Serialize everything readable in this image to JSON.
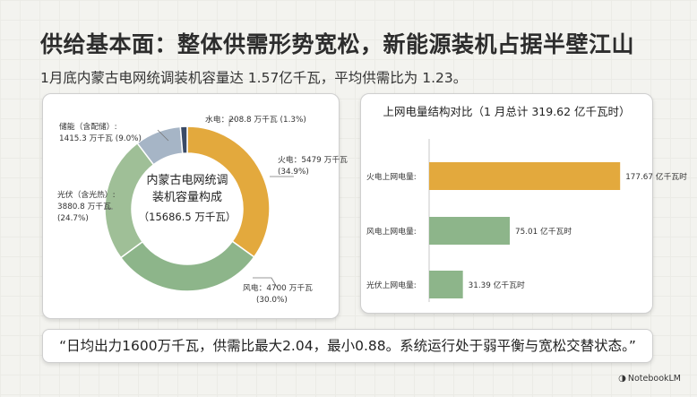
{
  "page": {
    "title": "供给基本面：整体供需形势宽松，新能源装机占据半壁江山",
    "subtitle": "1月底内蒙古电网统调装机容量达 1.57亿千瓦，平均供需比为 1.23。",
    "quote": "“日均出力1600万千瓦，供需比最大2.04，最小0.88。系统运行处于弱平衡与宽松交替状态。”",
    "brand": "NotebookLM",
    "brand_icon": "notebooklm-logo-icon"
  },
  "chart_data": [
    {
      "type": "pie",
      "variant": "donut",
      "center_label": [
        "内蒙古电网统调",
        "装机容量构成",
        "（15686.5 万千瓦）"
      ],
      "unit": "万千瓦",
      "slices": [
        {
          "name": "火电",
          "value": 5479,
          "percent": "34.9%",
          "color": "#e3a93d",
          "label": "火电：5479 万千瓦",
          "pct_label": "(34.9%)"
        },
        {
          "name": "风电",
          "value": 4700,
          "percent": "30.0%",
          "color": "#8db58a",
          "label": "风电：4700 万千瓦",
          "pct_label": "(30.0%)"
        },
        {
          "name": "光伏（含光热）",
          "value": 3880.8,
          "percent": "24.7%",
          "color": "#9fbf97",
          "label": [
            "光伏（含光热）:",
            "3880.8 万千瓦",
            "(24.7%)"
          ]
        },
        {
          "name": "储能（含配储）",
          "value": 1415.3,
          "percent": "9.0%",
          "color": "#a6b5c6",
          "label": [
            "储能（含配储）:",
            "1415.3 万千瓦 (9.0%)"
          ]
        },
        {
          "name": "水电",
          "value": 208.8,
          "percent": "1.3%",
          "color": "#3a4a66",
          "label": "水电：208.8 万千瓦 (1.3%)"
        }
      ]
    },
    {
      "type": "bar",
      "orientation": "horizontal",
      "title": "上网电量结构对比（1 月总计 319.62 亿千瓦时）",
      "categories": [
        "火电上网电量:",
        "风电上网电量:",
        "光伏上网电量:"
      ],
      "values": [
        177.67,
        75.01,
        31.39
      ],
      "value_labels": [
        "177.67 亿千瓦时",
        "75.01 亿千瓦时",
        "31.39 亿千瓦时"
      ],
      "colors": [
        "#e3a93d",
        "#8db58a",
        "#8db58a"
      ],
      "xlim": [
        0,
        200
      ]
    }
  ]
}
